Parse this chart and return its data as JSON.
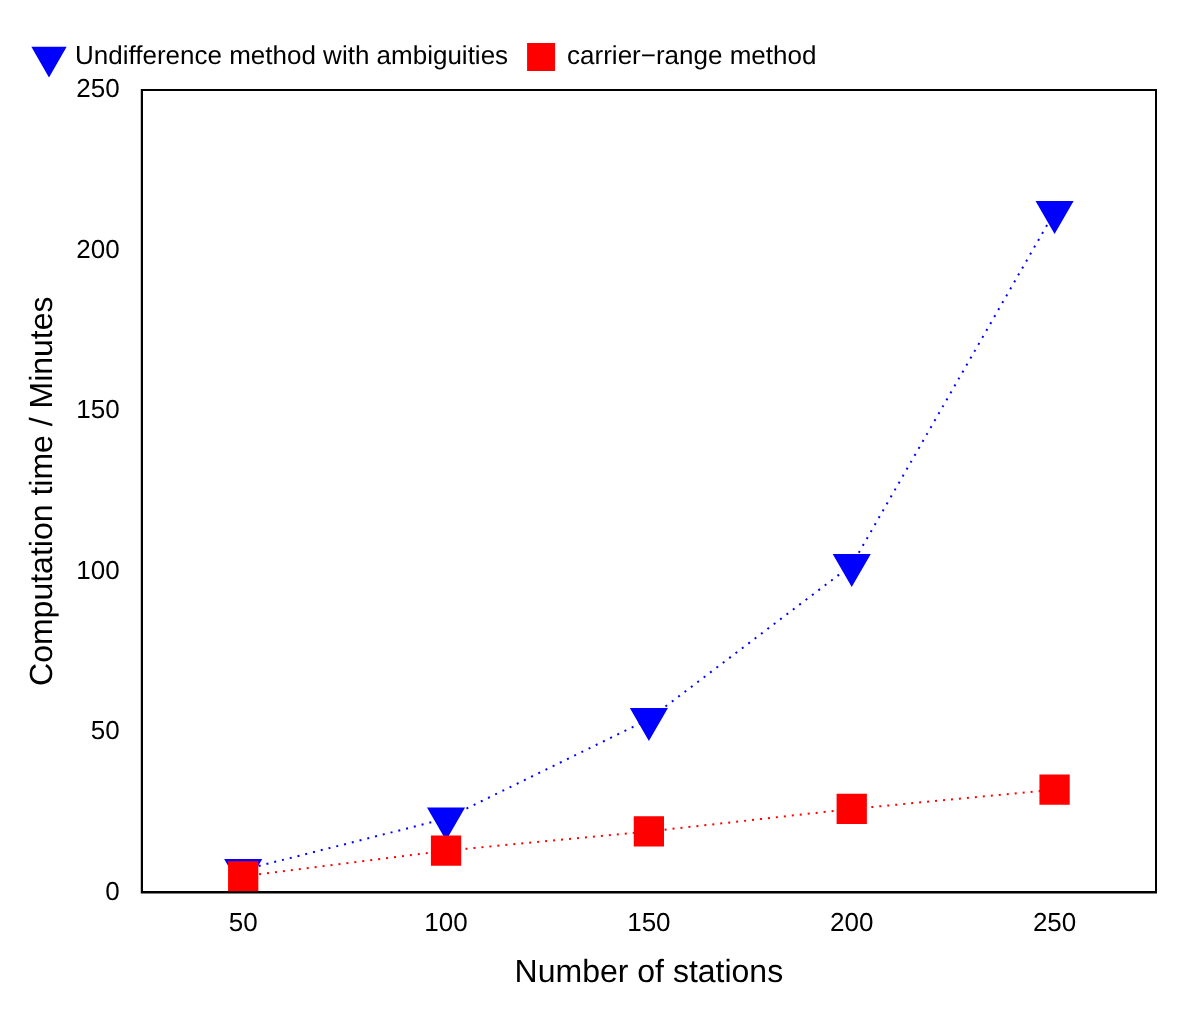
{
  "chart_data": {
    "type": "line",
    "xlabel": "Number of stations",
    "ylabel": "Computation time / Minutes",
    "x": [
      50,
      100,
      150,
      200,
      250
    ],
    "xlim": [
      25,
      275
    ],
    "xticks": [
      50,
      100,
      150,
      200,
      250
    ],
    "ylim": [
      0,
      250
    ],
    "yticks": [
      0,
      50,
      100,
      150,
      200,
      250
    ],
    "grid": false,
    "legend": "top left",
    "line_style": "dotted",
    "series": [
      {
        "name": "Undifference method with ambiguities",
        "color": "#0000ff",
        "values": [
          7,
          23,
          54,
          102,
          212
        ],
        "marker": "triangle"
      },
      {
        "name": "carrier−range method",
        "color": "#ff0000",
        "values": [
          5,
          13,
          19,
          26,
          32
        ],
        "marker": "square"
      }
    ]
  }
}
